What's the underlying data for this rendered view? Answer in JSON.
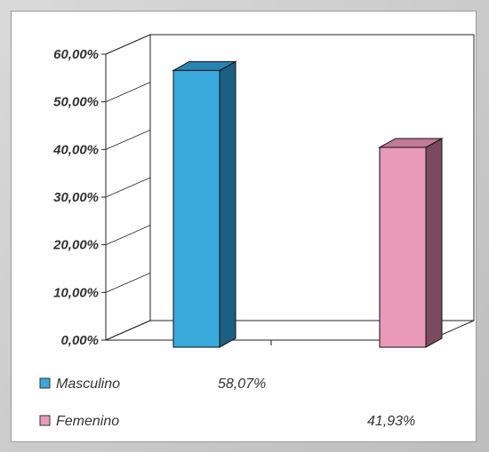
{
  "chart_data": {
    "type": "bar",
    "categories": [
      "Masculino",
      "Femenino"
    ],
    "values": [
      58.07,
      41.93
    ],
    "value_labels": [
      "58,07%",
      "41,93%"
    ],
    "ylim": [
      0,
      60
    ],
    "yticks": [
      0,
      10,
      20,
      30,
      40,
      50,
      60
    ],
    "ytick_labels": [
      "0,00%",
      "10,00%",
      "20,00%",
      "30,00%",
      "40,00%",
      "50,00%",
      "60,00%"
    ],
    "title": "",
    "xlabel": "",
    "ylabel": "",
    "grid": false,
    "three_d": true,
    "legend_placement": "bottom",
    "colors": {
      "Masculino": {
        "front": "#39a9dc",
        "side": "#1d5f80",
        "top": "#2a84b3"
      },
      "Femenino": {
        "front": "#e89ab8",
        "side": "#7a4a5e",
        "top": "#c27a96"
      }
    },
    "legend": [
      {
        "label": "Masculino",
        "value_label": "58,07%"
      },
      {
        "label": "Femenino",
        "value_label": "41,93%"
      }
    ]
  }
}
